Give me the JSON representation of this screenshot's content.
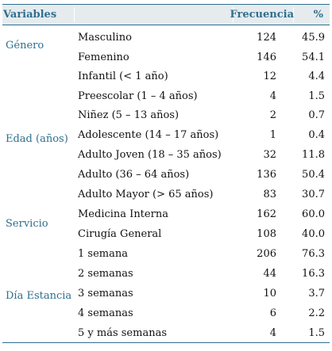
{
  "header": {
    "variables": "Variables",
    "frecuencia": "Frecuencia",
    "percent": "%"
  },
  "groups": [
    "Género",
    "Edad (años)",
    "Servicio",
    "Día Estancia"
  ],
  "rows": [
    {
      "label": "Masculino",
      "freq": "124",
      "pct": "45.9"
    },
    {
      "label": "Femenino",
      "freq": "146",
      "pct": "54.1"
    },
    {
      "label": "Infantil (< 1 año)",
      "freq": "12",
      "pct": "4.4"
    },
    {
      "label": "Preescolar (1 – 4 años)",
      "freq": "4",
      "pct": "1.5"
    },
    {
      "label": "Niñez (5 – 13 años)",
      "freq": "2",
      "pct": "0.7"
    },
    {
      "label": "Adolescente (14 – 17 años)",
      "freq": "1",
      "pct": "0.4"
    },
    {
      "label": "Adulto Joven (18 – 35 años)",
      "freq": "32",
      "pct": "11.8"
    },
    {
      "label": "Adulto (36 – 64 años)",
      "freq": "136",
      "pct": "50.4"
    },
    {
      "label": "Adulto Mayor (> 65 años)",
      "freq": "83",
      "pct": "30.7"
    },
    {
      "label": "Medicina Interna",
      "freq": "162",
      "pct": "60.0"
    },
    {
      "label": "Cirugía General",
      "freq": "108",
      "pct": "40.0"
    },
    {
      "label": "1 semana",
      "freq": "206",
      "pct": "76.3"
    },
    {
      "label": "2 semanas",
      "freq": "44",
      "pct": "16.3"
    },
    {
      "label": "3 semanas",
      "freq": "10",
      "pct": "3.7"
    },
    {
      "label": "4 semanas",
      "freq": "6",
      "pct": "2.2"
    },
    {
      "label": "5 y más semanas",
      "freq": "4",
      "pct": "1.5"
    }
  ]
}
